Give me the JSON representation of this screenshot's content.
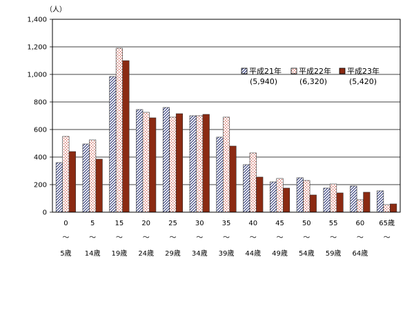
{
  "chart_data": {
    "type": "bar",
    "unit": "（人）",
    "ylim": [
      0,
      1400
    ],
    "yticks": [
      "0",
      "200",
      "400",
      "600",
      "800",
      "1,000",
      "1,200",
      "1,400"
    ],
    "grid": true,
    "legend_position": "right",
    "categories": [
      {
        "top": "0",
        "mid": "～",
        "bottom": "5歳"
      },
      {
        "top": "5",
        "mid": "～",
        "bottom": "14歳"
      },
      {
        "top": "15",
        "mid": "～",
        "bottom": "19歳"
      },
      {
        "top": "20",
        "mid": "～",
        "bottom": "24歳"
      },
      {
        "top": "25",
        "mid": "～",
        "bottom": "29歳"
      },
      {
        "top": "30",
        "mid": "～",
        "bottom": "34歳"
      },
      {
        "top": "35",
        "mid": "～",
        "bottom": "39歳"
      },
      {
        "top": "40",
        "mid": "～",
        "bottom": "44歳"
      },
      {
        "top": "45",
        "mid": "～",
        "bottom": "49歳"
      },
      {
        "top": "50",
        "mid": "～",
        "bottom": "54歳"
      },
      {
        "top": "55",
        "mid": "～",
        "bottom": "59歳"
      },
      {
        "top": "60",
        "mid": "～",
        "bottom": "64歳"
      },
      {
        "top": "65歳",
        "mid": "～",
        "bottom": ""
      }
    ],
    "series": [
      {
        "name": "平成21年",
        "total": "(5,940)",
        "pattern": "diagonal-hatch",
        "color": "#1f2a6e",
        "values": [
          360,
          495,
          985,
          745,
          760,
          700,
          545,
          345,
          220,
          250,
          175,
          190,
          155
        ]
      },
      {
        "name": "平成22年",
        "total": "(6,320)",
        "pattern": "dots",
        "color": "#c0392b",
        "values": [
          550,
          525,
          1190,
          725,
          690,
          700,
          690,
          430,
          245,
          230,
          205,
          90,
          55
        ]
      },
      {
        "name": "平成23年",
        "total": "(5,420)",
        "pattern": "solid",
        "color": "#8b2a12",
        "values": [
          440,
          385,
          1100,
          685,
          715,
          710,
          480,
          255,
          175,
          125,
          140,
          145,
          60
        ]
      }
    ]
  }
}
